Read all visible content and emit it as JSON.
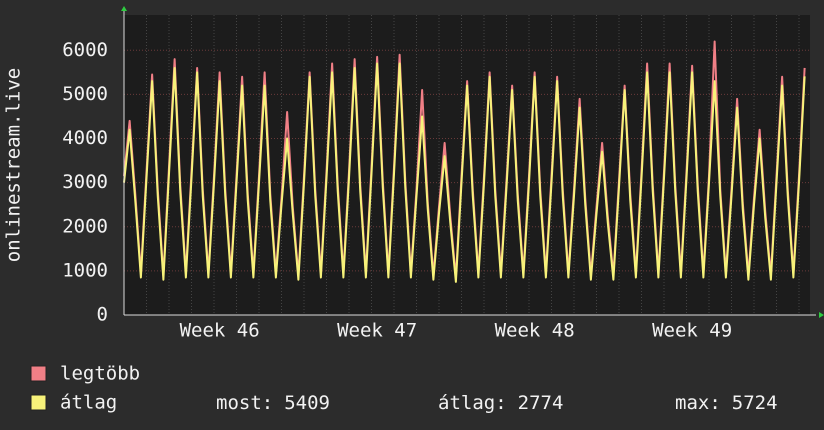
{
  "chart_data": {
    "type": "line",
    "ylabel": "onlinestream.live",
    "categories": [
      null,
      null,
      null,
      null,
      null,
      null,
      null,
      null,
      null,
      null,
      null,
      null,
      null,
      null,
      null,
      null,
      null,
      "Week 46",
      null,
      null,
      null,
      null,
      null,
      null,
      null,
      null,
      null,
      null,
      null,
      null,
      null,
      null,
      null,
      null,
      null,
      null,
      null,
      null,
      null,
      null,
      null,
      null,
      null,
      null,
      null,
      "Week 47",
      null,
      null,
      null,
      null,
      null,
      null,
      null,
      null,
      null,
      null,
      null,
      null,
      null,
      null,
      null,
      null,
      null,
      null,
      null,
      null,
      null,
      null,
      null,
      null,
      null,
      null,
      null,
      "Week 48",
      null,
      null,
      null,
      null,
      null,
      null,
      null,
      null,
      null,
      null,
      null,
      null,
      null,
      null,
      null,
      null,
      null,
      null,
      null,
      null,
      null,
      null,
      null,
      null,
      null,
      null,
      null,
      "Week 49",
      null,
      null,
      null,
      null,
      null,
      null,
      null,
      null,
      null,
      null,
      null,
      null,
      null,
      null,
      null,
      null,
      null,
      null,
      null,
      null
    ],
    "series": [
      {
        "name": "legtöbb",
        "color": "#f07f86",
        "values": [
          3150,
          4400,
          2750,
          950,
          3250,
          5450,
          2850,
          900,
          3350,
          5800,
          2950,
          950,
          3250,
          5600,
          2850,
          950,
          3150,
          5500,
          2850,
          950,
          3150,
          5400,
          2750,
          950,
          3150,
          5500,
          2750,
          950,
          2650,
          4600,
          2450,
          900,
          3150,
          5500,
          2850,
          950,
          3250,
          5700,
          2950,
          950,
          3250,
          5800,
          2950,
          950,
          3350,
          5850,
          3050,
          950,
          3350,
          5900,
          3050,
          950,
          2850,
          5100,
          2550,
          900,
          2450,
          3900,
          2250,
          850,
          3150,
          5300,
          2850,
          950,
          3150,
          5500,
          2850,
          950,
          3050,
          5200,
          2750,
          950,
          3150,
          5500,
          2850,
          950,
          3150,
          5400,
          2850,
          950,
          2850,
          4900,
          2650,
          900,
          2450,
          3900,
          2250,
          900,
          3050,
          5200,
          2750,
          950,
          3250,
          5700,
          2950,
          950,
          3250,
          5700,
          2950,
          950,
          3250,
          5650,
          2950,
          950,
          3150,
          6200,
          2850,
          950,
          2850,
          4900,
          2550,
          900,
          2650,
          4200,
          2350,
          900,
          3150,
          5400,
          2850,
          950,
          3150,
          5600
        ]
      },
      {
        "name": "átlag",
        "color": "#f7f27a",
        "values": [
          3000,
          4200,
          2600,
          850,
          3100,
          5300,
          2700,
          800,
          3200,
          5600,
          2800,
          850,
          3100,
          5500,
          2700,
          850,
          3000,
          5300,
          2700,
          850,
          3000,
          5200,
          2600,
          850,
          3000,
          5200,
          2600,
          850,
          2500,
          4000,
          2300,
          800,
          3000,
          5400,
          2700,
          850,
          3100,
          5500,
          2800,
          850,
          3100,
          5600,
          2800,
          850,
          3200,
          5700,
          2900,
          850,
          3200,
          5700,
          2900,
          850,
          2700,
          4500,
          2400,
          800,
          2300,
          3600,
          2100,
          750,
          3000,
          5200,
          2700,
          850,
          3000,
          5400,
          2700,
          850,
          2900,
          5100,
          2600,
          850,
          3000,
          5400,
          2700,
          850,
          3000,
          5300,
          2700,
          850,
          2700,
          4700,
          2500,
          800,
          2300,
          3700,
          2100,
          800,
          2900,
          5100,
          2600,
          850,
          3100,
          5500,
          2800,
          850,
          3100,
          5500,
          2800,
          850,
          3100,
          5500,
          2800,
          850,
          3000,
          5300,
          2700,
          850,
          2700,
          4700,
          2400,
          800,
          2500,
          4000,
          2200,
          800,
          3000,
          5200,
          2700,
          850,
          3000,
          5409
        ]
      }
    ],
    "ylim": [
      0,
      6800
    ],
    "yticks": [
      0,
      1000,
      2000,
      3000,
      4000,
      5000,
      6000
    ],
    "grid": true,
    "stats": [
      {
        "label": "most:",
        "value": 5409
      },
      {
        "label": "átlag:",
        "value": 2774
      },
      {
        "label": "max:",
        "value": 5724
      }
    ]
  }
}
